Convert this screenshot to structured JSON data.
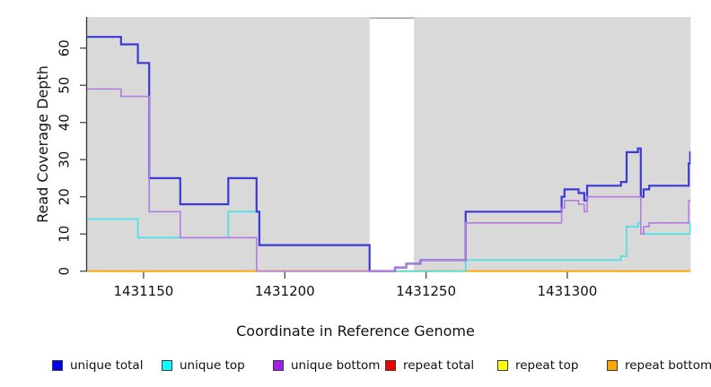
{
  "colors": {
    "plot_background": "#d9d9d9",
    "page_background": "#ffffff",
    "axis": "#333333",
    "tick": "#555555",
    "gap_band": "#ffffff",
    "gap_top_border": "#a8a8a8",
    "text": "#111111"
  },
  "y_axis": {
    "label": "Read Coverage Depth",
    "ticks": [
      0,
      10,
      20,
      30,
      40,
      50,
      60
    ]
  },
  "x_axis": {
    "label": "Coordinate in Reference Genome",
    "ticks": [
      1431150,
      1431200,
      1431250,
      1431300
    ]
  },
  "legend": {
    "items": [
      {
        "label": "unique total",
        "color": "#0000EE"
      },
      {
        "label": "unique top",
        "color": "#00FFFF"
      },
      {
        "label": "unique bottom",
        "color": "#A020F0"
      },
      {
        "label": "repeat total",
        "color": "#EE0000"
      },
      {
        "label": "repeat top",
        "color": "#FFFF00"
      },
      {
        "label": "repeat bottom",
        "color": "#FFA500"
      }
    ]
  },
  "chart_data": {
    "type": "line",
    "subtype": "step-coverage",
    "title": "",
    "xlabel": "Coordinate in Reference Genome",
    "ylabel": "Read Coverage Depth",
    "x_range": [
      1431130,
      1431343.6
    ],
    "y_range": [
      0,
      68
    ],
    "grid": false,
    "legend_position": "bottom",
    "gap_region": {
      "start": 1431230,
      "end": 1431245.7
    },
    "note": "points are [coordinate, depth] step-after pairs; series drawn in listed order (last on top)",
    "series": [
      {
        "name": "repeat total",
        "color": "#DD1111",
        "line_width": 1.4,
        "points": [
          [
            1431130,
            0
          ]
        ]
      },
      {
        "name": "repeat top",
        "color": "#EEEE22",
        "line_width": 1.4,
        "points": [
          [
            1431130,
            0
          ]
        ]
      },
      {
        "name": "repeat bottom",
        "color": "#FFA400",
        "line_width": 1.8,
        "points": [
          [
            1431130,
            0
          ]
        ]
      },
      {
        "name": "unique top",
        "color": "#45DFE8",
        "line_width": 1.6,
        "points": [
          [
            1431130,
            14
          ],
          [
            1431148,
            9
          ],
          [
            1431180,
            16
          ],
          [
            1431191,
            7
          ],
          [
            1431230,
            0
          ],
          [
            1431264,
            3
          ],
          [
            1431319,
            4
          ],
          [
            1431321,
            12
          ],
          [
            1431325,
            13
          ],
          [
            1431326,
            10
          ],
          [
            1431343.5,
            13
          ]
        ]
      },
      {
        "name": "unique total",
        "color": "#3A3AD6",
        "line_width": 2.2,
        "points": [
          [
            1431130,
            63
          ],
          [
            1431142,
            61
          ],
          [
            1431148,
            56
          ],
          [
            1431152,
            25
          ],
          [
            1431163,
            18
          ],
          [
            1431180,
            25
          ],
          [
            1431190,
            16
          ],
          [
            1431191,
            7
          ],
          [
            1431230,
            0
          ],
          [
            1431239,
            1
          ],
          [
            1431243,
            2
          ],
          [
            1431248,
            3
          ],
          [
            1431264,
            16
          ],
          [
            1431298,
            20
          ],
          [
            1431299,
            22
          ],
          [
            1431304,
            21
          ],
          [
            1431306,
            19
          ],
          [
            1431307,
            23
          ],
          [
            1431319,
            24
          ],
          [
            1431321,
            32
          ],
          [
            1431325,
            33
          ],
          [
            1431326,
            20
          ],
          [
            1431327,
            22
          ],
          [
            1431329,
            23
          ],
          [
            1431343,
            29
          ],
          [
            1431343.5,
            32
          ]
        ]
      },
      {
        "name": "unique bottom",
        "color": "#B47CDE",
        "line_width": 1.6,
        "points": [
          [
            1431130,
            49
          ],
          [
            1431142,
            47
          ],
          [
            1431152,
            16
          ],
          [
            1431163,
            9
          ],
          [
            1431190,
            0
          ],
          [
            1431239,
            1
          ],
          [
            1431243,
            2
          ],
          [
            1431248,
            3
          ],
          [
            1431264,
            13
          ],
          [
            1431298,
            17
          ],
          [
            1431299,
            19
          ],
          [
            1431304,
            18
          ],
          [
            1431306,
            16
          ],
          [
            1431307,
            20
          ],
          [
            1431326,
            10
          ],
          [
            1431327,
            12
          ],
          [
            1431329,
            13
          ],
          [
            1431343,
            19
          ]
        ]
      }
    ]
  }
}
